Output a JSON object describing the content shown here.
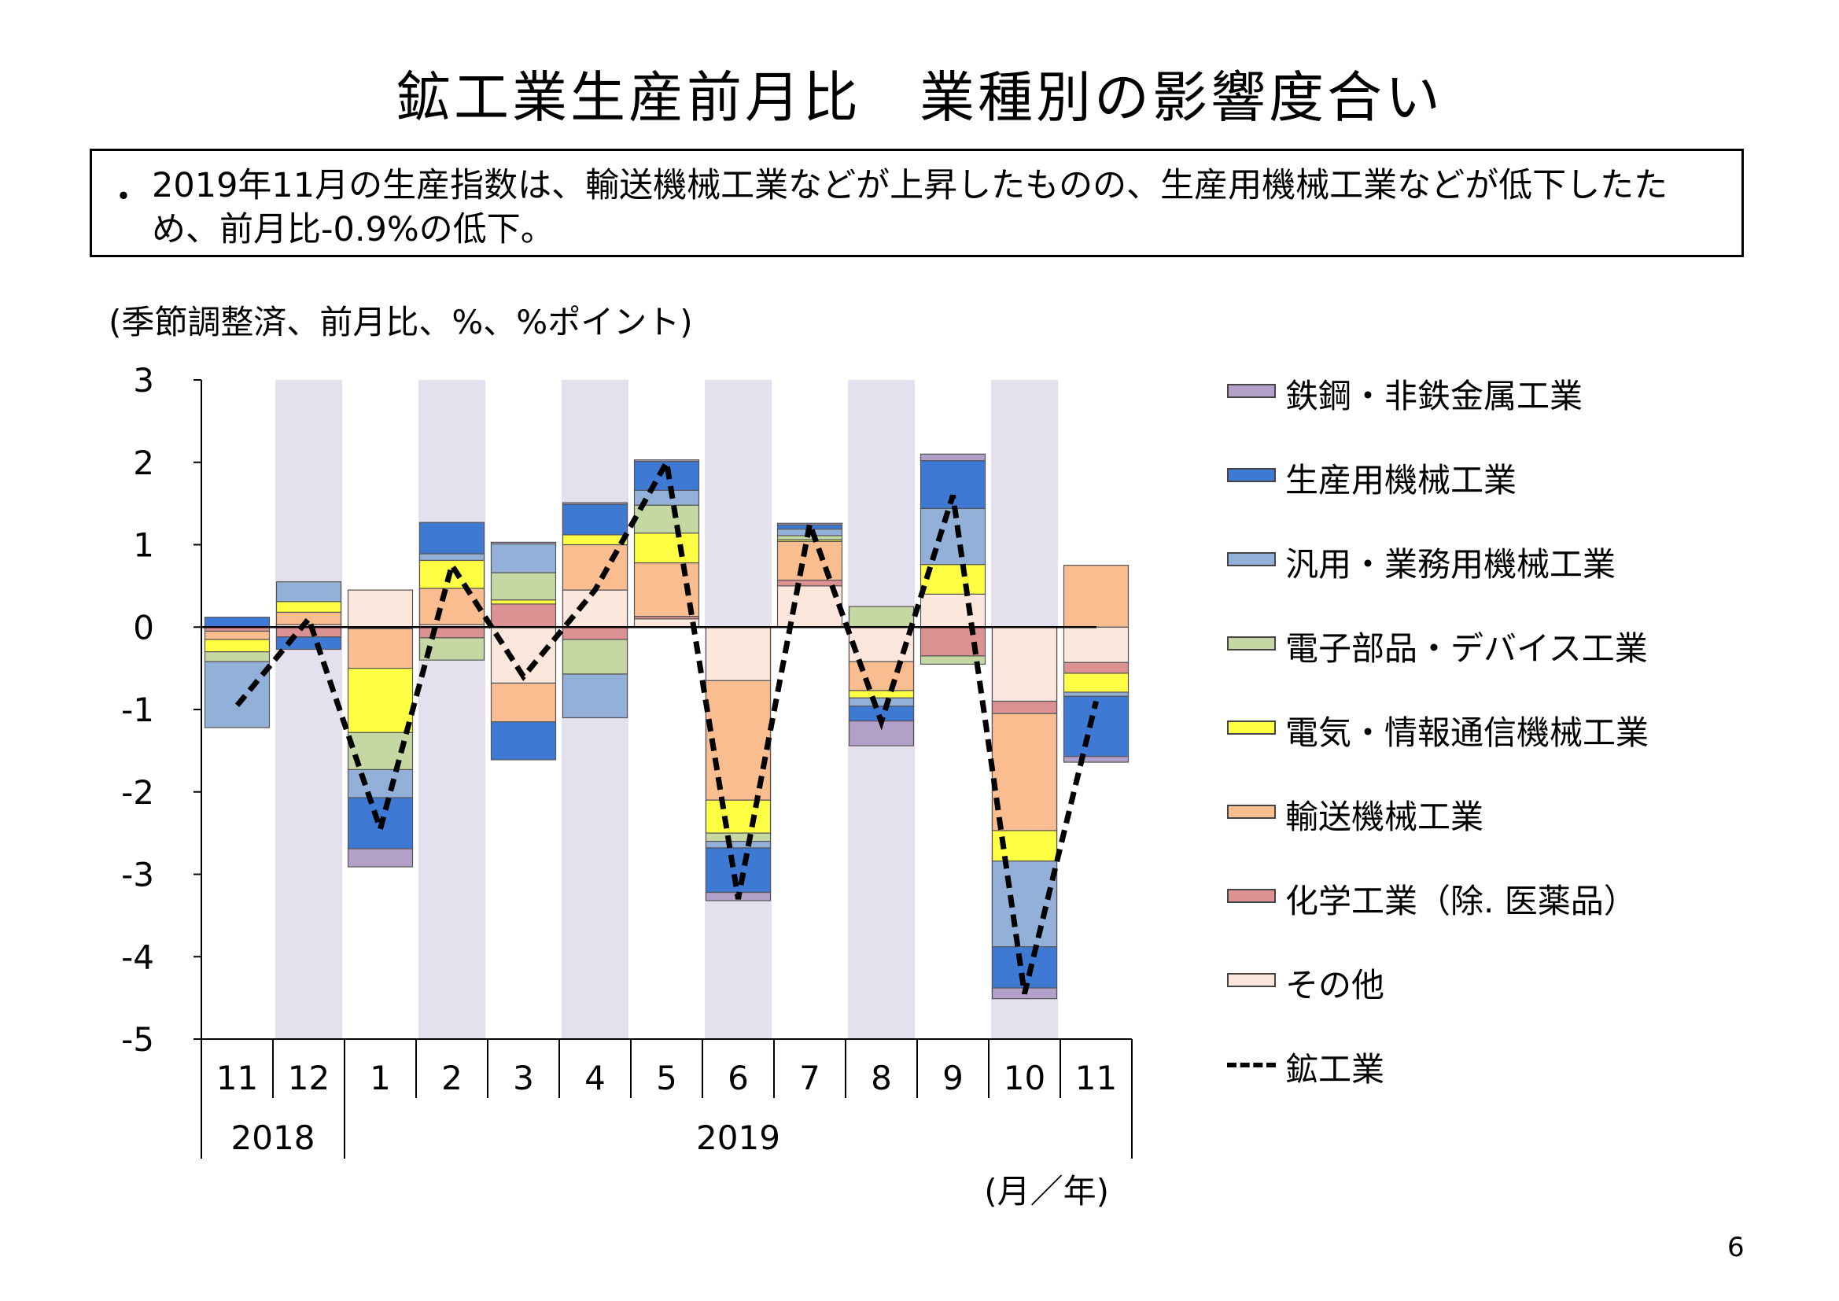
{
  "title": "鉱工業生産前月比　業種別の影響度合い",
  "summary": {
    "bullet": "・",
    "text": "2019年11月の生産指数は、輸送機械工業などが上昇したものの、生産用機械工業などが低下したため、前月比-0.9%の低下。"
  },
  "unit_label": "(季節調整済、前月比、%、%ポイント)",
  "page_number": "6",
  "chart_data": {
    "type": "bar",
    "stacked": true,
    "categories": [
      "11",
      "12",
      "1",
      "2",
      "3",
      "4",
      "5",
      "6",
      "7",
      "8",
      "9",
      "10",
      "11"
    ],
    "year_groups": [
      {
        "label": "2018",
        "span": 2
      },
      {
        "label": "2019",
        "span": 11
      }
    ],
    "axis_unit_label": "(月／年)",
    "ylim": [
      -5,
      3
    ],
    "yticks": [
      "3",
      "2",
      "1",
      "0",
      "-1",
      "-2",
      "-3",
      "-4",
      "-5"
    ],
    "shaded_categories": [
      1,
      3,
      5,
      7,
      9,
      11
    ],
    "shade_color": "#e4e0ed",
    "series": [
      {
        "name": "その他",
        "color": "#fce7dc",
        "values": [
          0.0,
          0.03,
          0.45,
          0.03,
          -0.68,
          0.45,
          0.1,
          -0.65,
          0.5,
          -0.42,
          0.4,
          -0.9,
          -0.43
        ]
      },
      {
        "name": "化学工業（除. 医薬品）",
        "color": "#dc9292",
        "values": [
          -0.05,
          -0.12,
          -0.02,
          -0.13,
          0.28,
          -0.15,
          0.03,
          0.0,
          0.07,
          0.0,
          -0.35,
          -0.15,
          -0.13
        ]
      },
      {
        "name": "輸送機械工業",
        "color": "#f9bd8f",
        "values": [
          -0.1,
          0.15,
          -0.48,
          0.44,
          -0.47,
          0.55,
          0.65,
          -1.45,
          0.47,
          -0.35,
          0.0,
          -1.42,
          0.75
        ]
      },
      {
        "name": "電気・情報通信機械工業",
        "color": "#ffff44",
        "values": [
          -0.15,
          0.13,
          -0.78,
          0.34,
          0.05,
          0.12,
          0.36,
          -0.4,
          0.02,
          -0.09,
          0.36,
          -0.37,
          -0.23
        ]
      },
      {
        "name": "電子部品・デバイス工業",
        "color": "#c5d8a3",
        "values": [
          -0.12,
          0.0,
          -0.45,
          -0.27,
          0.33,
          -0.42,
          0.34,
          -0.1,
          0.05,
          0.25,
          -0.1,
          0.0,
          0.0
        ]
      },
      {
        "name": "汎用・業務用機械工業",
        "color": "#93b1d8",
        "values": [
          -0.8,
          0.24,
          -0.34,
          0.08,
          0.35,
          -0.53,
          0.18,
          -0.08,
          0.08,
          -0.1,
          0.68,
          -1.04,
          -0.05
        ]
      },
      {
        "name": "生産用機械工業",
        "color": "#3e7ad4",
        "values": [
          0.12,
          -0.15,
          -0.62,
          0.38,
          -0.46,
          0.37,
          0.35,
          -0.54,
          0.05,
          -0.18,
          0.58,
          -0.5,
          -0.73
        ]
      },
      {
        "name": "鉄鋼・非鉄金属工業",
        "color": "#b3a0c8",
        "values": [
          0.0,
          0.0,
          -0.22,
          0.0,
          0.02,
          0.02,
          0.02,
          -0.1,
          0.02,
          -0.3,
          0.08,
          -0.13,
          -0.07
        ]
      }
    ],
    "line_series": {
      "name": "鉱工業",
      "color": "#000000",
      "style": "dashed",
      "values": [
        -0.95,
        0.1,
        -2.45,
        0.75,
        -0.6,
        0.45,
        2.0,
        -3.3,
        1.25,
        -1.15,
        1.6,
        -4.45,
        -0.9
      ]
    },
    "legend_order": [
      "鉄鋼・非鉄金属工業",
      "生産用機械工業",
      "汎用・業務用機械工業",
      "電子部品・デバイス工業",
      "電気・情報通信機械工業",
      "輸送機械工業",
      "化学工業（除. 医薬品）",
      "その他",
      "鉱工業"
    ],
    "legend_position": "right"
  }
}
